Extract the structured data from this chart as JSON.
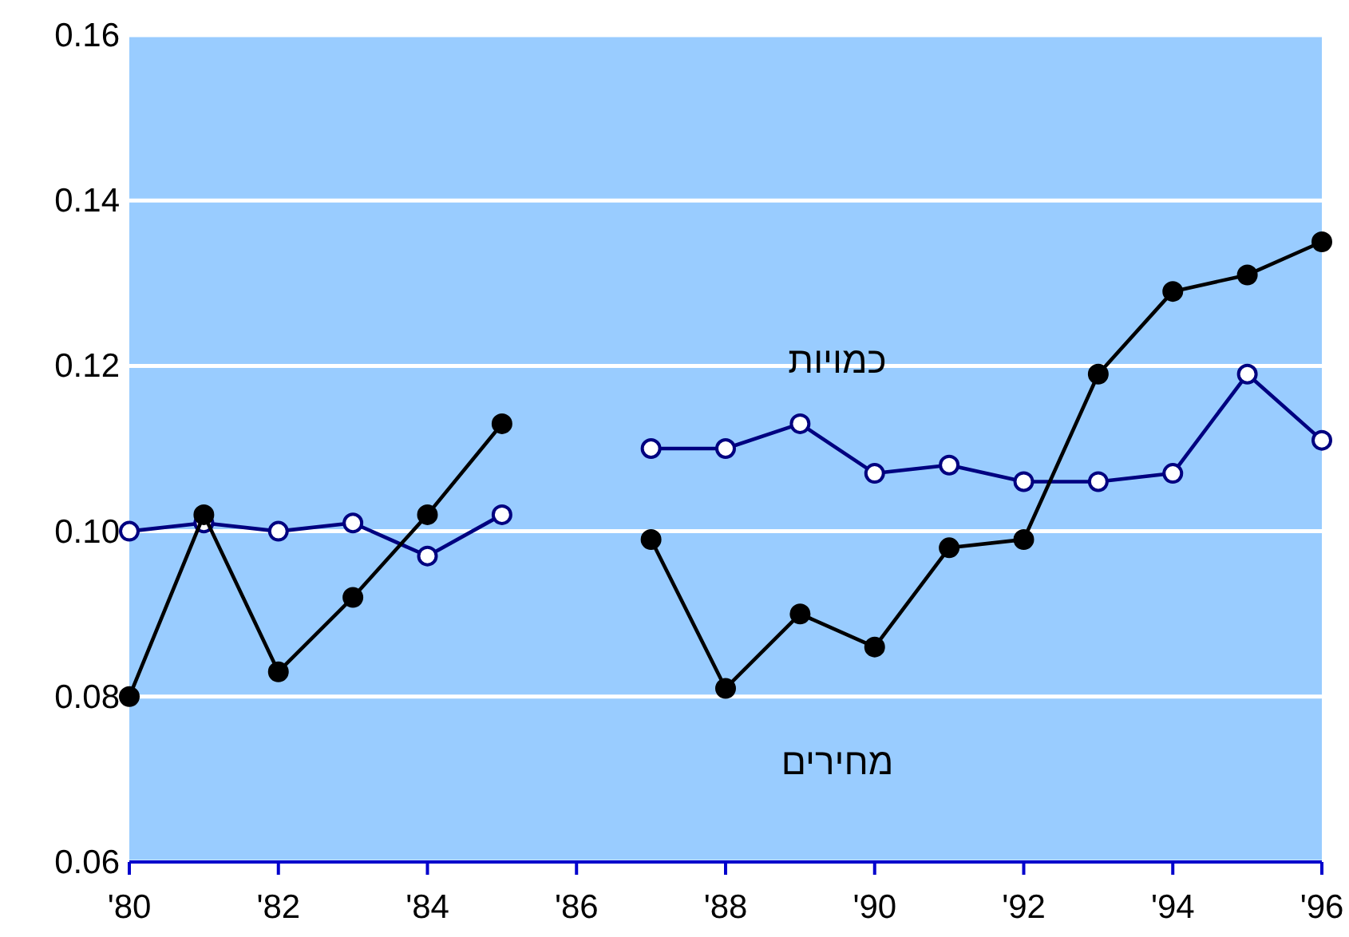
{
  "chart_data": {
    "type": "line",
    "x": [
      1980,
      1981,
      1982,
      1983,
      1984,
      1985,
      1986,
      1987,
      1988,
      1989,
      1990,
      1991,
      1992,
      1993,
      1994,
      1995,
      1996
    ],
    "series": [
      {
        "name": "מחירים",
        "color": "#000000",
        "marker": "circle",
        "values": [
          0.08,
          0.102,
          0.083,
          0.092,
          0.102,
          0.113,
          null,
          0.099,
          0.081,
          0.09,
          0.086,
          0.098,
          0.099,
          0.119,
          0.129,
          0.131,
          0.135
        ]
      },
      {
        "name": "כמויות",
        "color": "#000080",
        "marker": "circle",
        "values": [
          0.1,
          0.101,
          0.1,
          0.101,
          0.097,
          0.102,
          null,
          0.11,
          0.11,
          0.113,
          0.107,
          0.108,
          0.106,
          0.106,
          0.107,
          0.119,
          0.111
        ]
      }
    ],
    "xlim": [
      1980,
      1996
    ],
    "xticks": [
      {
        "value": 1980,
        "label": "'80"
      },
      {
        "value": 1982,
        "label": "'82"
      },
      {
        "value": 1984,
        "label": "'84"
      },
      {
        "value": 1986,
        "label": "'86"
      },
      {
        "value": 1988,
        "label": "'88"
      },
      {
        "value": 1990,
        "label": "'90"
      },
      {
        "value": 1992,
        "label": "'92"
      },
      {
        "value": 1994,
        "label": "'94"
      },
      {
        "value": 1996,
        "label": "'96"
      }
    ],
    "ylim": [
      0.06,
      0.16
    ],
    "yticks": [
      {
        "value": 0.06,
        "label": "0.06"
      },
      {
        "value": 0.08,
        "label": "0.08"
      },
      {
        "value": 0.1,
        "label": "0.10"
      },
      {
        "value": 0.12,
        "label": "0.12"
      },
      {
        "value": 0.14,
        "label": "0.14"
      },
      {
        "value": 0.16,
        "label": "0.16"
      }
    ],
    "grid": "y",
    "legend": false
  }
}
